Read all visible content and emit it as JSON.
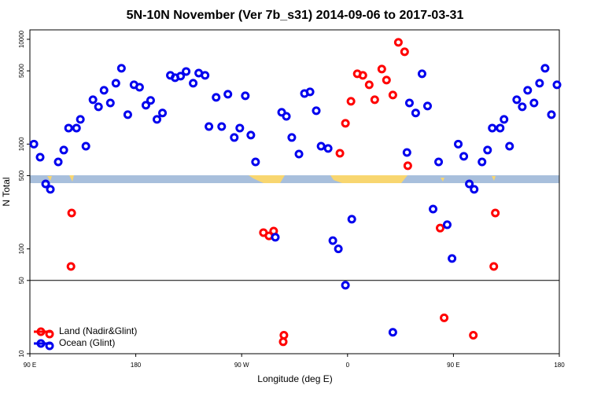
{
  "chart_data": {
    "type": "scatter",
    "title": "5N-10N November (Ver 7b_s31)   2014-09-06 to 2017-03-31",
    "x_label": "Longitude (deg E)",
    "y_label": "N Total",
    "xlim": [
      90,
      540
    ],
    "ylim": [
      10,
      12300
    ],
    "log_y": true,
    "xticks": [
      {
        "value": 90,
        "label": "90 E"
      },
      180,
      {
        "value": 270,
        "label": "90 W"
      },
      {
        "value": 360,
        "label": "0"
      },
      {
        "value": 450,
        "label": "90 E"
      },
      {
        "value": 540,
        "label": "180"
      }
    ],
    "yticks": [
      10,
      50,
      100,
      500,
      1000,
      5000,
      10000
    ],
    "hline": 50,
    "legend": "bottom-left",
    "series": [
      {
        "name": "Land (Nadir&Glint)",
        "color": "#ff0000",
        "x": [
          125.5,
          124.9,
          288.5,
          293.2,
          297.2,
          305.3,
          305.9,
          353.5,
          358.2,
          362.9,
          368.3,
          373.0,
          378.4,
          383.1,
          389.1,
          393.1,
          398.5,
          403.2,
          408.5,
          411.2,
          438.7,
          442.1,
          466.9,
          484.3,
          485.6
        ],
        "values": [
          220,
          68,
          143,
          133,
          148,
          13,
          15,
          818,
          1578,
          2560,
          4690,
          4530,
          3680,
          2650,
          5200,
          4080,
          2940,
          9350,
          7600,
          621,
          158,
          22,
          15,
          68,
          220
        ]
      },
      {
        "name": "Ocean (Glint)",
        "color": "#0000ee",
        "x": [
          93.4,
          98.7,
          103.4,
          107.4,
          114.1,
          118.8,
          122.9,
          129.6,
          132.9,
          137.6,
          143.6,
          148.3,
          153.0,
          158.4,
          163.1,
          167.8,
          173.2,
          178.5,
          183.2,
          188.6,
          192.6,
          198.0,
          202.7,
          209.4,
          213.4,
          218.1,
          222.8,
          228.8,
          233.5,
          238.9,
          242.2,
          248.3,
          253.0,
          258.3,
          263.7,
          268.4,
          273.1,
          277.8,
          281.8,
          298.6,
          304.0,
          308.0,
          312.6,
          318.7,
          323.4,
          328.1,
          333.4,
          337.5,
          343.5,
          347.5,
          352.2,
          358.2,
          363.6,
          398.5,
          410.5,
          412.6,
          417.9,
          423.3,
          428.0,
          437.4,
          432.7,
          444.7,
          448.8,
          454.1,
          458.8,
          463.5,
          467.6,
          474.3,
          479.0,
          483.0,
          489.7,
          493.0,
          497.7,
          503.8,
          508.5,
          513.1,
          518.5,
          523.2,
          527.9,
          533.3,
          538.0
        ],
        "values": [
          1000,
          750,
          417,
          370,
          676,
          877,
          1422,
          1422,
          1720,
          955,
          2650,
          2270,
          3260,
          2470,
          3810,
          5290,
          1910,
          3680,
          3490,
          2350,
          2610,
          1720,
          1980,
          4530,
          4300,
          4450,
          4930,
          3810,
          4760,
          4530,
          1470,
          2790,
          1470,
          2990,
          1156,
          1422,
          2890,
          1218,
          676,
          129,
          2010,
          1840,
          1156,
          804,
          3040,
          3150,
          2080,
          955,
          908,
          120,
          100,
          45,
          192,
          16,
          832,
          2470,
          1980,
          4690,
          2310,
          676,
          240,
          170,
          81,
          1000,
          764,
          417,
          370,
          676,
          877,
          1422,
          1422,
          1720,
          955,
          2650,
          2270,
          3260,
          2470,
          3810,
          5290,
          1910,
          3680
        ]
      }
    ]
  }
}
